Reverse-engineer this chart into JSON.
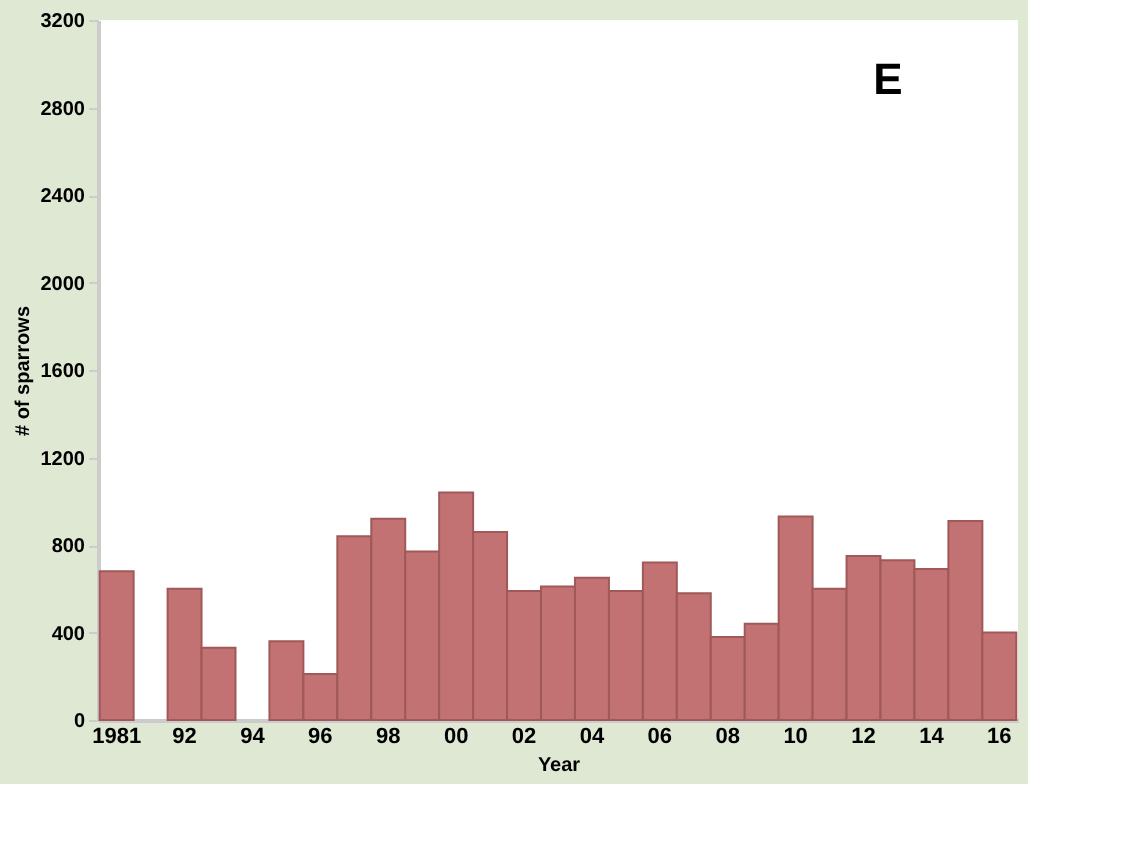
{
  "chart_data": {
    "type": "bar",
    "xlabel": "Year",
    "ylabel": "# of sparrows",
    "annotations": [
      "E"
    ],
    "categories": [
      "1981",
      null,
      "92",
      null,
      "94",
      null,
      "96",
      null,
      "98",
      null,
      "00",
      null,
      "02",
      null,
      "04",
      null,
      "06",
      null,
      "08",
      null,
      "10",
      null,
      "12",
      null,
      "14",
      null,
      "16"
    ],
    "values": [
      680,
      null,
      600,
      330,
      null,
      360,
      210,
      840,
      920,
      770,
      1040,
      860,
      590,
      610,
      650,
      590,
      720,
      580,
      380,
      440,
      930,
      600,
      750,
      730,
      690,
      910,
      400
    ],
    "color": "#c27272",
    "ylim": [
      0,
      3200
    ],
    "yticks": [
      0,
      400,
      800,
      1200,
      1600,
      2000,
      2400,
      2800,
      3200
    ],
    "grid": false
  }
}
